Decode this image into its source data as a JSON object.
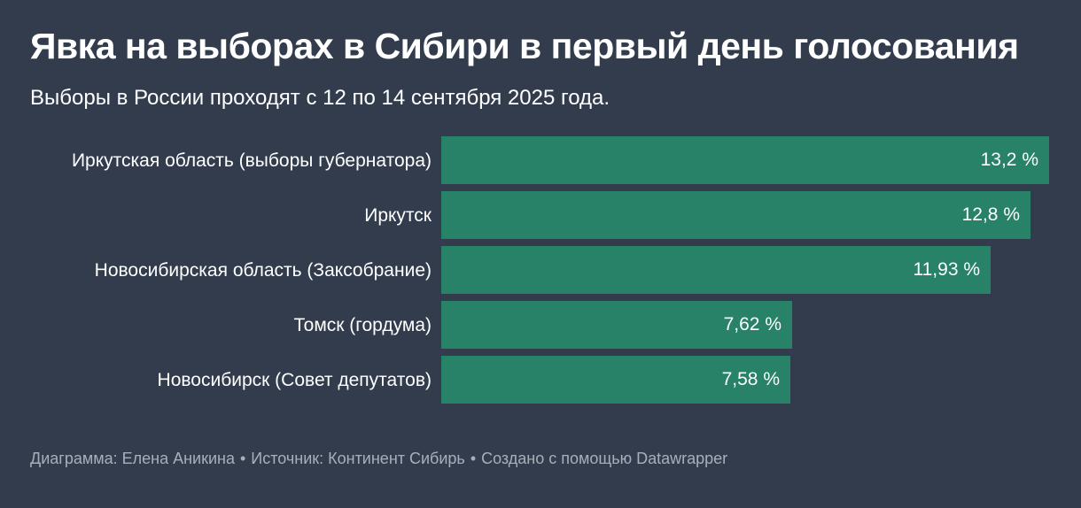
{
  "title": "Явка на выборах в Сибири в первый день голосования",
  "subtitle": "Выборы в России проходят с 12 по 14 сентября 2025 года.",
  "colors": {
    "background": "#323c4d",
    "bar": "#288268",
    "text": "#ffffff",
    "footer_text": "#a9afba"
  },
  "chart_data": {
    "type": "bar",
    "orientation": "horizontal",
    "categories": [
      "Иркутская область (выборы губернатора)",
      "Иркутск",
      "Новосибирская область (Заксобрание)",
      "Томск (гордума)",
      "Новосибирск (Совет депутатов)"
    ],
    "values": [
      13.2,
      12.8,
      11.93,
      7.62,
      7.58
    ],
    "value_labels": [
      "13,2 %",
      "12,8 %",
      "11,93 %",
      "7,62 %",
      "7,58 %"
    ],
    "xlim": [
      0,
      13.2
    ],
    "grid": false
  },
  "footer": {
    "chart_credit": "Диаграмма: Елена Аникина",
    "source": "Источник: Континент Сибирь",
    "made_with": "Создано с помощью Datawrapper",
    "separator": "•"
  }
}
